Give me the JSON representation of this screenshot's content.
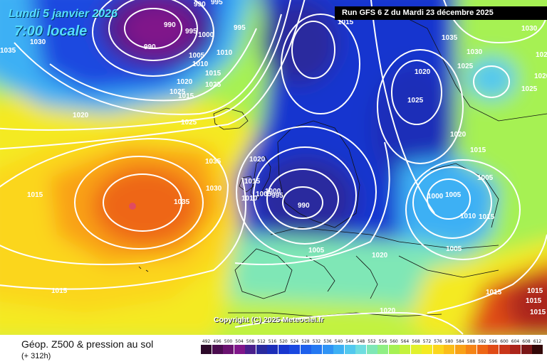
{
  "map": {
    "date_label": "Lundi 5 janvier 2026",
    "time_label": "7:00 locale",
    "run_label": "Run GFS 6 Z du Mardi 23 décembre 2025",
    "copyright": "Copyright (C) 2025 Meteociel.fr",
    "isobar_labels": [
      {
        "text": "990"
      },
      {
        "text": "995"
      },
      {
        "text": "990"
      },
      {
        "text": "995"
      },
      {
        "text": "1000"
      },
      {
        "text": "995"
      },
      {
        "text": "990"
      },
      {
        "text": "1030"
      },
      {
        "text": "1035"
      },
      {
        "text": "1005"
      },
      {
        "text": "1010"
      },
      {
        "text": "1010"
      },
      {
        "text": "1015"
      },
      {
        "text": "1020"
      },
      {
        "text": "1025"
      },
      {
        "text": "1025"
      },
      {
        "text": "1015"
      },
      {
        "text": "1020"
      },
      {
        "text": "1025"
      },
      {
        "text": "1015"
      },
      {
        "text": "1035"
      },
      {
        "text": "1035"
      },
      {
        "text": "1030"
      },
      {
        "text": "1020"
      },
      {
        "text": "1015"
      },
      {
        "text": "1010"
      },
      {
        "text": "1005"
      },
      {
        "text": "995"
      },
      {
        "text": "1000"
      },
      {
        "text": "990"
      },
      {
        "text": "1005"
      },
      {
        "text": "1015"
      },
      {
        "text": "1020"
      },
      {
        "text": "1015"
      },
      {
        "text": "1020"
      },
      {
        "text": "1015"
      },
      {
        "text": "1035"
      },
      {
        "text": "1030"
      },
      {
        "text": "1025"
      },
      {
        "text": "1020"
      },
      {
        "text": "1025"
      },
      {
        "text": "1030"
      },
      {
        "text": "1025"
      },
      {
        "text": "1020"
      },
      {
        "text": "1025"
      },
      {
        "text": "1005"
      },
      {
        "text": "1000"
      },
      {
        "text": "1005"
      },
      {
        "text": "1010"
      },
      {
        "text": "1015"
      },
      {
        "text": "1005"
      },
      {
        "text": "1015"
      },
      {
        "text": "1020"
      },
      {
        "text": "1015"
      },
      {
        "text": "1015"
      },
      {
        "text": "1015"
      }
    ]
  },
  "footer": {
    "title": "Géop. Z500 & pression au sol",
    "subtitle": "(+ 312h)"
  },
  "scale": {
    "labels": [
      "492",
      "496",
      "500",
      "504",
      "508",
      "512",
      "516",
      "520",
      "524",
      "528",
      "532",
      "536",
      "540",
      "544",
      "548",
      "552",
      "556",
      "560",
      "564",
      "568",
      "572",
      "576",
      "580",
      "584",
      "588",
      "592",
      "596",
      "600",
      "604",
      "608",
      "612"
    ],
    "colors": [
      "#2d0a2a",
      "#4b0d4f",
      "#6a1270",
      "#80168a",
      "#4a1f8c",
      "#2a2a9e",
      "#1c2db8",
      "#1836cf",
      "#1a48e0",
      "#1e60ec",
      "#2478f2",
      "#2f93f5",
      "#3db0f4",
      "#52c8ee",
      "#6fdde0",
      "#7fe7b6",
      "#8fef83",
      "#a6f152",
      "#c4f23c",
      "#e1f12c",
      "#f4ea21",
      "#fbd61c",
      "#fbbd19",
      "#f9a117",
      "#f58416",
      "#ee6615",
      "#e04b16",
      "#c93619",
      "#ab251b",
      "#7a1717",
      "#330808"
    ]
  }
}
